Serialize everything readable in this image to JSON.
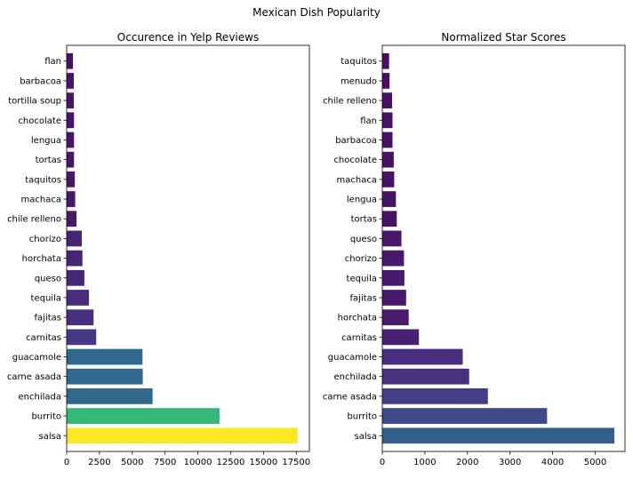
{
  "figure_title": "Mexican Dish Popularity",
  "chart_data": [
    {
      "type": "bar",
      "orientation": "horizontal",
      "title": "Occurence in Yelp Reviews",
      "xlabel": "",
      "ylabel": "",
      "xlim": [
        0,
        18500
      ],
      "xticks": [
        0,
        2500,
        5000,
        7500,
        10000,
        12500,
        15000,
        17500
      ],
      "xtick_labels": [
        "0",
        "2500",
        "5000",
        "7500",
        "10000",
        "12500",
        "15000",
        "17500"
      ],
      "grid": false,
      "categories": [
        "salsa",
        "burrito",
        "enchilada",
        "carne asada",
        "guacamole",
        "carnitas",
        "fajitas",
        "tequila",
        "queso",
        "horchata",
        "chorizo",
        "chile relleno",
        "machaca",
        "taquitos",
        "tortas",
        "lengua",
        "chocolate",
        "tortilla soup",
        "barbacoa",
        "flan"
      ],
      "values": [
        17600,
        11650,
        6550,
        5800,
        5780,
        2250,
        2050,
        1700,
        1350,
        1200,
        1150,
        750,
        650,
        620,
        560,
        560,
        560,
        540,
        540,
        480
      ],
      "colors": [
        "#fde725",
        "#35b779",
        "#31688e",
        "#31688e",
        "#31688e",
        "#453781",
        "#46307e",
        "#472d7b",
        "#472777",
        "#482475",
        "#482475",
        "#481a6c",
        "#481769",
        "#481769",
        "#481467",
        "#481467",
        "#481467",
        "#481467",
        "#481467",
        "#471164"
      ]
    },
    {
      "type": "bar",
      "orientation": "horizontal",
      "title": "Normalized Star Scores",
      "xlabel": "",
      "ylabel": "",
      "xlim": [
        0,
        5700
      ],
      "xticks": [
        0,
        1000,
        2000,
        3000,
        4000,
        5000
      ],
      "xtick_labels": [
        "0",
        "1000",
        "2000",
        "3000",
        "4000",
        "5000"
      ],
      "grid": false,
      "categories": [
        "salsa",
        "burrito",
        "carne asada",
        "enchilada",
        "guacamole",
        "carnitas",
        "horchata",
        "fajitas",
        "tequila",
        "chorizo",
        "queso",
        "tortas",
        "lengua",
        "machaca",
        "chocolate",
        "barbacoa",
        "flan",
        "chile relleno",
        "menudo",
        "taquitos"
      ],
      "values": [
        5450,
        3870,
        2480,
        2040,
        1890,
        860,
        620,
        560,
        520,
        510,
        450,
        340,
        320,
        280,
        270,
        240,
        240,
        230,
        170,
        160
      ],
      "colors": [
        "#355f8d",
        "#3e4a89",
        "#433e85",
        "#46327e",
        "#472f7d",
        "#482173",
        "#481b6d",
        "#481a6c",
        "#481a6c",
        "#481a6c",
        "#481769",
        "#471365",
        "#471365",
        "#471365",
        "#471365",
        "#471164",
        "#471164",
        "#471164",
        "#470e61",
        "#470e61"
      ]
    }
  ]
}
